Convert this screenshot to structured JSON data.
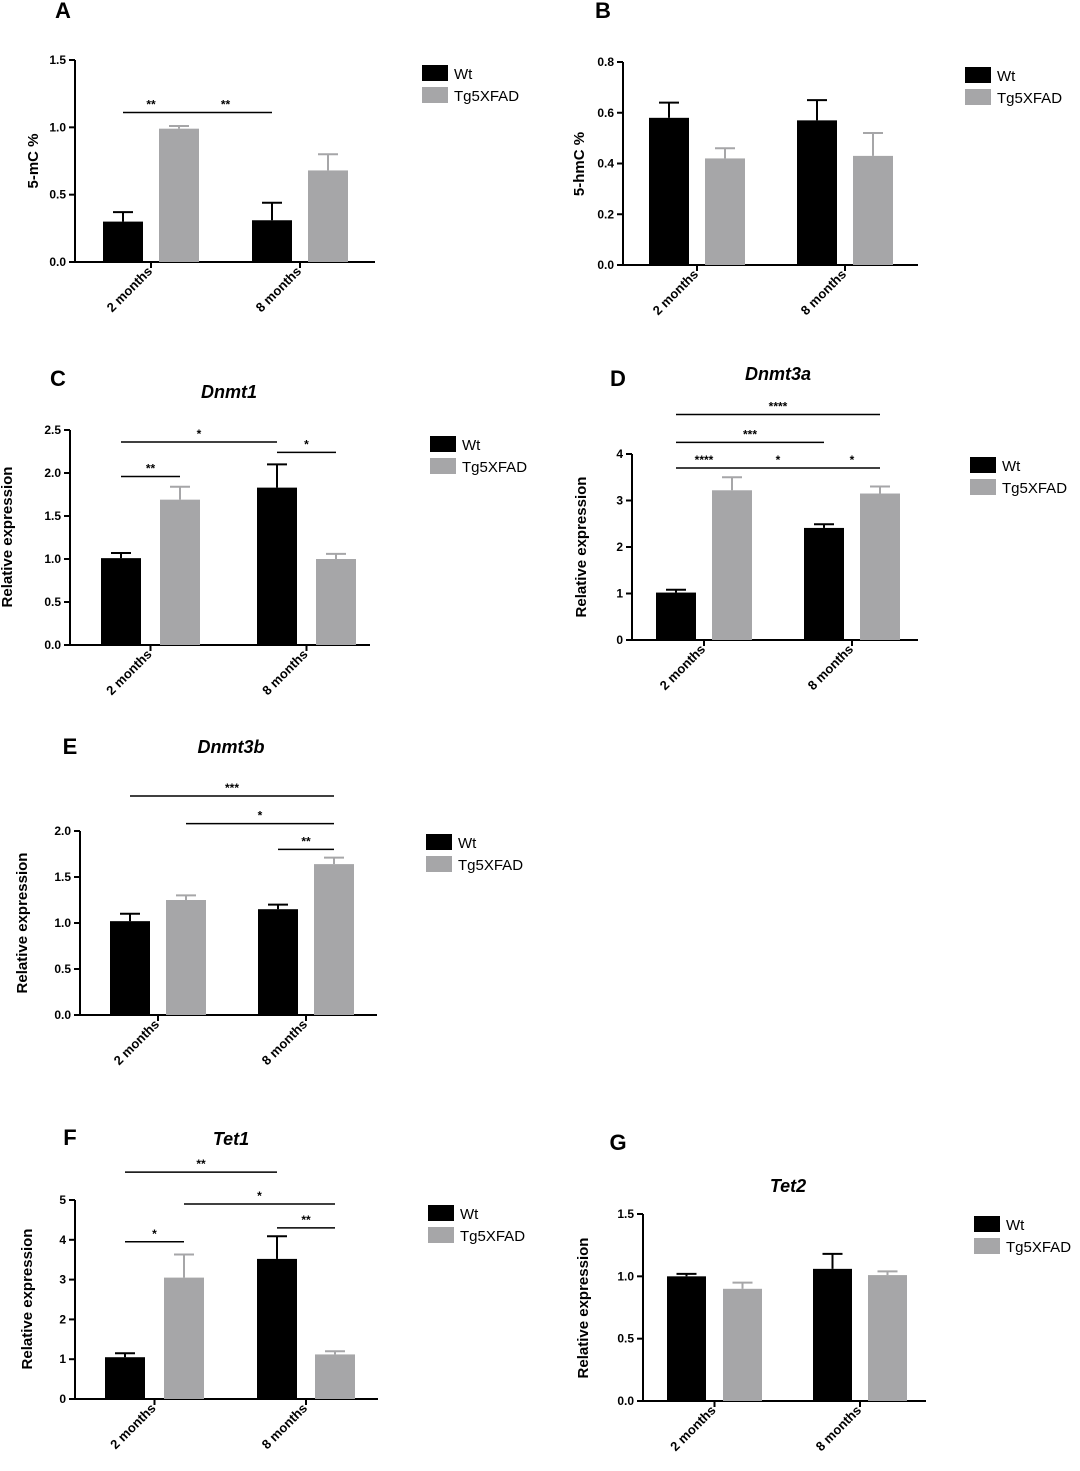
{
  "colors": {
    "Wt": "#000000",
    "Tg5XFAD": "#a6a6a8"
  },
  "chart_data": [
    {
      "panel": "A",
      "type": "bar",
      "title": "",
      "ylabel": "5-mC %",
      "categories": [
        "2 months",
        "8 months"
      ],
      "yticks": [
        "0.0",
        "0.5",
        "1.0",
        "1.5"
      ],
      "ylim": [
        0,
        1.5
      ],
      "series": [
        {
          "name": "Wt",
          "values": [
            0.3,
            0.31
          ],
          "errors": [
            0.07,
            0.13
          ]
        },
        {
          "name": "Tg5XFAD",
          "values": [
            0.99,
            0.68
          ],
          "errors": [
            0.02,
            0.12
          ]
        }
      ],
      "significance": [
        {
          "from": "2 months|Wt",
          "to": "2 months|Tg5XFAD",
          "label": "**",
          "y": 1.11
        },
        {
          "from": "2 months|Tg5XFAD",
          "to": "8 months|Wt",
          "label": "**",
          "y": 1.11
        }
      ],
      "legend": [
        "Wt",
        "Tg5XFAD"
      ]
    },
    {
      "panel": "B",
      "type": "bar",
      "title": "",
      "ylabel": "5-hmC %",
      "categories": [
        "2 months",
        "8 months"
      ],
      "yticks": [
        "0.0",
        "0.2",
        "0.4",
        "0.6",
        "0.8"
      ],
      "ylim": [
        0,
        0.8
      ],
      "series": [
        {
          "name": "Wt",
          "values": [
            0.58,
            0.57
          ],
          "errors": [
            0.06,
            0.08
          ]
        },
        {
          "name": "Tg5XFAD",
          "values": [
            0.42,
            0.43
          ],
          "errors": [
            0.04,
            0.09
          ]
        }
      ],
      "significance": [],
      "legend": [
        "Wt",
        "Tg5XFAD"
      ]
    },
    {
      "panel": "C",
      "type": "bar",
      "title": "Dnmt1",
      "ylabel": "Relative expression",
      "categories": [
        "2 months",
        "8 months"
      ],
      "yticks": [
        "0.0",
        "0.5",
        "1.0",
        "1.5",
        "2.0",
        "2.5"
      ],
      "ylim": [
        0,
        2.5
      ],
      "series": [
        {
          "name": "Wt",
          "values": [
            1.01,
            1.83
          ],
          "errors": [
            0.06,
            0.27
          ]
        },
        {
          "name": "Tg5XFAD",
          "values": [
            1.69,
            1.0
          ],
          "errors": [
            0.15,
            0.06
          ]
        }
      ],
      "significance": [
        {
          "from": "2 months|Wt",
          "to": "8 months|Wt",
          "label": "*",
          "y": 2.36
        },
        {
          "from": "8 months|Wt",
          "to": "8 months|Tg5XFAD",
          "label": "*",
          "y": 2.24
        },
        {
          "from": "2 months|Wt",
          "to": "2 months|Tg5XFAD",
          "label": "**",
          "y": 1.96
        }
      ],
      "legend": [
        "Wt",
        "Tg5XFAD"
      ]
    },
    {
      "panel": "D",
      "type": "bar",
      "title": "Dnmt3a",
      "ylabel": "Relative expression",
      "categories": [
        "2 months",
        "8 months"
      ],
      "yticks": [
        "0",
        "1",
        "2",
        "3",
        "4"
      ],
      "ylim": [
        0,
        4
      ],
      "series": [
        {
          "name": "Wt",
          "values": [
            1.02,
            2.41
          ],
          "errors": [
            0.06,
            0.08
          ]
        },
        {
          "name": "Tg5XFAD",
          "values": [
            3.22,
            3.15
          ],
          "errors": [
            0.28,
            0.15
          ]
        }
      ],
      "significance": [
        {
          "from": "2 months|Wt",
          "to": "8 months|Tg5XFAD",
          "label": "****",
          "y": 4.85
        },
        {
          "from": "2 months|Wt",
          "to": "8 months|Wt",
          "label": "***",
          "y": 4.25
        },
        {
          "from": "2 months|Wt",
          "to": "2 months|Tg5XFAD",
          "label": "****",
          "y": 3.7
        },
        {
          "from": "2 months|Tg5XFAD",
          "to": "8 months|Wt",
          "label": "*",
          "y": 3.7
        },
        {
          "from": "8 months|Wt",
          "to": "8 months|Tg5XFAD",
          "label": "*",
          "y": 3.7
        }
      ],
      "legend": [
        "Wt",
        "Tg5XFAD"
      ]
    },
    {
      "panel": "E",
      "type": "bar",
      "title": "Dnmt3b",
      "ylabel": "Relative expression",
      "categories": [
        "2 months",
        "8 months"
      ],
      "yticks": [
        "0.0",
        "0.5",
        "1.0",
        "1.5",
        "2.0"
      ],
      "ylim": [
        0,
        2.0
      ],
      "series": [
        {
          "name": "Wt",
          "values": [
            1.02,
            1.15
          ],
          "errors": [
            0.08,
            0.05
          ]
        },
        {
          "name": "Tg5XFAD",
          "values": [
            1.25,
            1.64
          ],
          "errors": [
            0.05,
            0.07
          ]
        }
      ],
      "significance": [
        {
          "from": "2 months|Wt",
          "to": "8 months|Tg5XFAD",
          "label": "***",
          "y": 2.38
        },
        {
          "from": "2 months|Tg5XFAD",
          "to": "8 months|Tg5XFAD",
          "label": "*",
          "y": 2.08
        },
        {
          "from": "8 months|Wt",
          "to": "8 months|Tg5XFAD",
          "label": "**",
          "y": 1.8
        }
      ],
      "legend": [
        "Wt",
        "Tg5XFAD"
      ]
    },
    {
      "panel": "F",
      "type": "bar",
      "title": "Tet1",
      "ylabel": "Relative expression",
      "categories": [
        "2 months",
        "8 months"
      ],
      "yticks": [
        "0",
        "1",
        "2",
        "3",
        "4",
        "5"
      ],
      "ylim": [
        0,
        5
      ],
      "series": [
        {
          "name": "Wt",
          "values": [
            1.05,
            3.52
          ],
          "errors": [
            0.1,
            0.57
          ]
        },
        {
          "name": "Tg5XFAD",
          "values": [
            3.05,
            1.12
          ],
          "errors": [
            0.58,
            0.08
          ]
        }
      ],
      "significance": [
        {
          "from": "2 months|Wt",
          "to": "8 months|Wt",
          "label": "**",
          "y": 5.7
        },
        {
          "from": "2 months|Tg5XFAD",
          "to": "8 months|Tg5XFAD",
          "label": "*",
          "y": 4.9
        },
        {
          "from": "8 months|Wt",
          "to": "8 months|Tg5XFAD",
          "label": "**",
          "y": 4.3
        },
        {
          "from": "2 months|Wt",
          "to": "2 months|Tg5XFAD",
          "label": "*",
          "y": 3.95
        }
      ],
      "legend": [
        "Wt",
        "Tg5XFAD"
      ]
    },
    {
      "panel": "G",
      "type": "bar",
      "title": "Tet2",
      "ylabel": "Relative expression",
      "categories": [
        "2 months",
        "8 months"
      ],
      "yticks": [
        "0.0",
        "0.5",
        "1.0",
        "1.5"
      ],
      "ylim": [
        0,
        1.5
      ],
      "series": [
        {
          "name": "Wt",
          "values": [
            1.0,
            1.06
          ],
          "errors": [
            0.02,
            0.12
          ]
        },
        {
          "name": "Tg5XFAD",
          "values": [
            0.9,
            1.01
          ],
          "errors": [
            0.05,
            0.03
          ]
        }
      ],
      "significance": [],
      "legend": [
        "Wt",
        "Tg5XFAD"
      ]
    }
  ]
}
